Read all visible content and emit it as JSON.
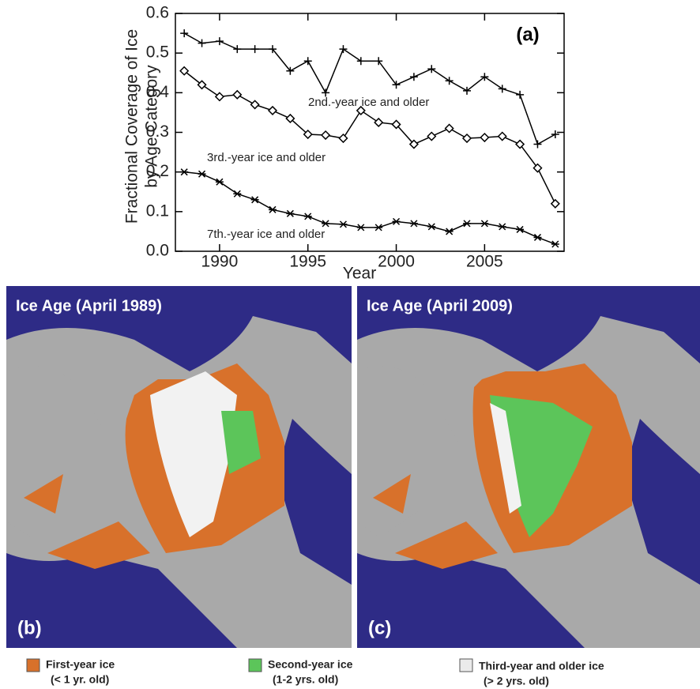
{
  "chart_data": {
    "type": "line",
    "ylabel": [
      "Fractional Coverage of Ice",
      "by Age Category"
    ],
    "xlabel": "Year",
    "panel_label": "(a)",
    "x": [
      1988,
      1989,
      1990,
      1991,
      1992,
      1993,
      1994,
      1995,
      1996,
      1997,
      1998,
      1999,
      2000,
      2001,
      2002,
      2003,
      2004,
      2005,
      2006,
      2007,
      2008,
      2009
    ],
    "xlim": [
      1987.5,
      2009.5
    ],
    "xticks": [
      1990,
      1995,
      2000,
      2005
    ],
    "ylim": [
      0,
      0.6
    ],
    "yticks": [
      {
        "value": 0,
        "label": "0.0"
      },
      0.1,
      0.2,
      0.3,
      0.4,
      0.5,
      0.6
    ],
    "series": [
      {
        "name": "2nd.-year ice and older",
        "color": "#000000",
        "marker": "plus",
        "values": [
          0.55,
          0.525,
          0.53,
          0.51,
          0.51,
          0.51,
          0.455,
          0.48,
          0.4,
          0.51,
          0.48,
          0.48,
          0.42,
          0.44,
          0.46,
          0.43,
          0.405,
          0.44,
          0.41,
          0.395,
          0.27,
          0.295
        ]
      },
      {
        "name": "3rd.-year ice and older",
        "color": "#000000",
        "marker": "diamond",
        "values": [
          0.455,
          0.42,
          0.39,
          0.395,
          0.37,
          0.355,
          0.335,
          0.295,
          0.293,
          0.285,
          0.355,
          0.325,
          0.32,
          0.27,
          0.29,
          0.31,
          0.285,
          0.287,
          0.29,
          0.27,
          0.21,
          0.12
        ]
      },
      {
        "name": "7th.-year ice and older",
        "color": "#000000",
        "marker": "asterisk",
        "values": [
          0.2,
          0.195,
          0.175,
          0.145,
          0.13,
          0.105,
          0.095,
          0.088,
          0.07,
          0.068,
          0.06,
          0.06,
          0.075,
          0.07,
          0.062,
          0.05,
          0.07,
          0.07,
          0.062,
          0.055,
          0.035,
          0.018
        ]
      }
    ]
  },
  "maps": [
    {
      "title": "Ice Age (April 1989)",
      "label": "(b)"
    },
    {
      "title": "Ice Age (April 2009)",
      "label": "(c)"
    }
  ],
  "legend": [
    {
      "name": "First-year ice",
      "note": "(< 1 yr. old)",
      "color": "#d8712b"
    },
    {
      "name": "Second-year ice",
      "note": "(1-2 yrs. old)",
      "color": "#5cc55a"
    },
    {
      "name": "Third-year and older ice",
      "note": "(> 2 yrs. old)",
      "color": "#ebebeb"
    }
  ]
}
